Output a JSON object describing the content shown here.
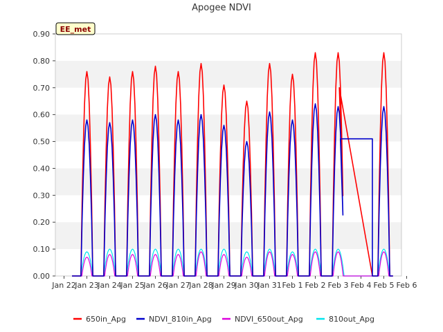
{
  "chart_data": {
    "type": "line",
    "title": "Apogee NDVI",
    "badge": "EE_met",
    "xlabel": "",
    "ylabel": "",
    "x_ticks": [
      "Jan 22",
      "Jan 23",
      "Jan 24",
      "Jan 25",
      "Jan 26",
      "Jan 27",
      "Jan 28",
      "Jan 29",
      "Jan 30",
      "Jan 31",
      "Feb 1",
      "Feb 2",
      "Feb 3",
      "Feb 4",
      "Feb 5",
      "Feb 6"
    ],
    "y_ticks": [
      "0.00",
      "0.10",
      "0.20",
      "0.30",
      "0.40",
      "0.50",
      "0.60",
      "0.70",
      "0.80",
      "0.90"
    ],
    "xlim": [
      0,
      15
    ],
    "ylim": [
      0,
      0.9
    ],
    "grid": "horizontal bands",
    "legend_position": "bottom",
    "daily_peaks": [
      {
        "day": "Jan 23",
        "650in_Apg": 0.76,
        "NDVI_810in_Apg": 0.58,
        "NDVI_650out_Apg": 0.07,
        "810out_Apg": 0.09
      },
      {
        "day": "Jan 24",
        "650in_Apg": 0.74,
        "NDVI_810in_Apg": 0.57,
        "NDVI_650out_Apg": 0.08,
        "810out_Apg": 0.1
      },
      {
        "day": "Jan 25",
        "650in_Apg": 0.76,
        "NDVI_810in_Apg": 0.58,
        "NDVI_650out_Apg": 0.08,
        "810out_Apg": 0.1
      },
      {
        "day": "Jan 26",
        "650in_Apg": 0.78,
        "NDVI_810in_Apg": 0.6,
        "NDVI_650out_Apg": 0.08,
        "810out_Apg": 0.1
      },
      {
        "day": "Jan 27",
        "650in_Apg": 0.76,
        "NDVI_810in_Apg": 0.58,
        "NDVI_650out_Apg": 0.08,
        "810out_Apg": 0.1
      },
      {
        "day": "Jan 28",
        "650in_Apg": 0.79,
        "NDVI_810in_Apg": 0.6,
        "NDVI_650out_Apg": 0.09,
        "810out_Apg": 0.1
      },
      {
        "day": "Jan 29",
        "650in_Apg": 0.71,
        "NDVI_810in_Apg": 0.56,
        "NDVI_650out_Apg": 0.08,
        "810out_Apg": 0.1
      },
      {
        "day": "Jan 30",
        "650in_Apg": 0.65,
        "NDVI_810in_Apg": 0.5,
        "NDVI_650out_Apg": 0.07,
        "810out_Apg": 0.09
      },
      {
        "day": "Jan 31",
        "650in_Apg": 0.79,
        "NDVI_810in_Apg": 0.61,
        "NDVI_650out_Apg": 0.09,
        "810out_Apg": 0.1
      },
      {
        "day": "Feb 1",
        "650in_Apg": 0.75,
        "NDVI_810in_Apg": 0.58,
        "NDVI_650out_Apg": 0.08,
        "810out_Apg": 0.09
      },
      {
        "day": "Feb 2",
        "650in_Apg": 0.83,
        "NDVI_810in_Apg": 0.64,
        "NDVI_650out_Apg": 0.09,
        "810out_Apg": 0.1
      },
      {
        "day": "Feb 3",
        "650in_Apg": 0.83,
        "NDVI_810in_Apg": 0.63,
        "NDVI_650out_Apg": 0.09,
        "810out_Apg": 0.1
      },
      {
        "day": "Feb 5",
        "650in_Apg": 0.83,
        "NDVI_810in_Apg": 0.63,
        "NDVI_650out_Apg": 0.09,
        "810out_Apg": 0.1
      }
    ],
    "gap_segments": {
      "650in_Apg": [
        [
          12.05,
          0.7
        ],
        [
          13.5,
          0.0
        ]
      ],
      "NDVI_810in_Apg": [
        [
          12.1,
          0.51
        ],
        [
          13.5,
          0.51
        ],
        [
          13.5,
          0.0
        ]
      ]
    },
    "series": [
      {
        "name": "650in_Apg",
        "color": "#ff0000"
      },
      {
        "name": "NDVI_810in_Apg",
        "color": "#0000cc"
      },
      {
        "name": "NDVI_650out_Apg",
        "color": "#dd00dd"
      },
      {
        "name": "810out_Apg",
        "color": "#00e5ee"
      }
    ]
  }
}
